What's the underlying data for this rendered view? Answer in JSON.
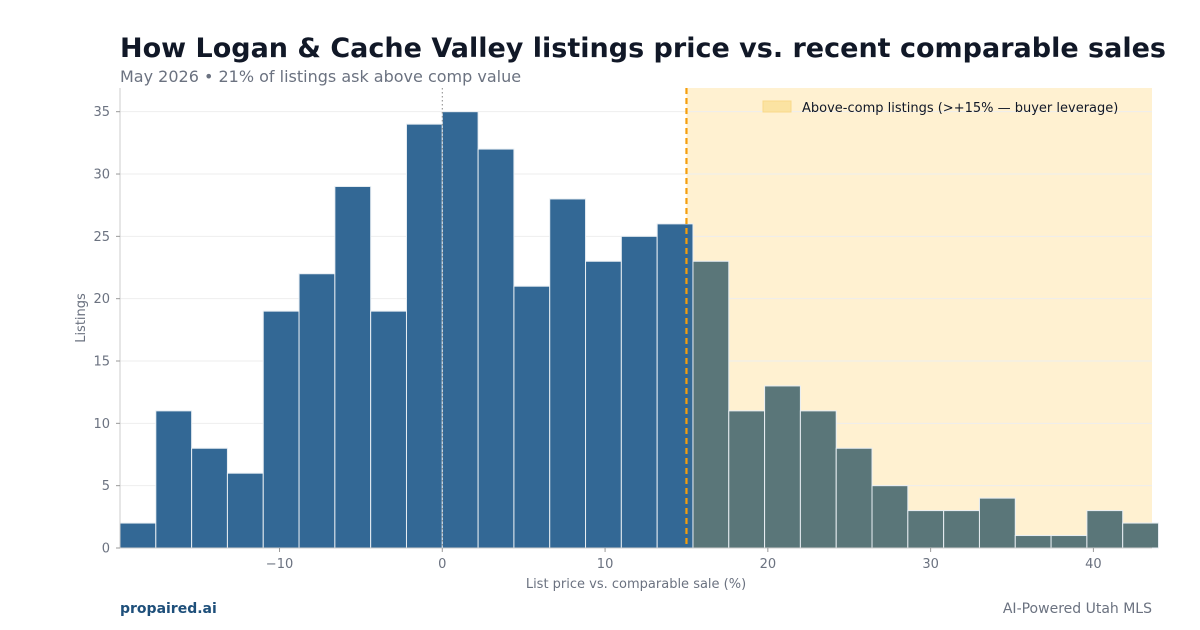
{
  "footer": {
    "brand": "propaired.ai",
    "tagline": "AI-Powered Utah MLS"
  },
  "colors": {
    "bar_below": "#336895",
    "bar_above": "#5a7679",
    "bar_edge": "#e8eef3",
    "highlight_region": "#fff1d1",
    "threshold_line": "#f59e0b",
    "zero_line": "#888888",
    "gridline": "#eeeeee",
    "axis": "#cccccc"
  },
  "chart_data": {
    "type": "bar",
    "subtype": "histogram",
    "title": "How Logan & Cache Valley listings price vs. recent comparable sales",
    "subtitle": "May 2026 • 21% of listings ask above comp value",
    "xlabel": "List price vs. comparable sale (%)",
    "ylabel": "Listings",
    "xlim": [
      -19.8,
      43.6
    ],
    "ylim": [
      0,
      36.9
    ],
    "xticks": [
      -10,
      0,
      10,
      20,
      30,
      40
    ],
    "xtick_labels": [
      "−10",
      "0",
      "10",
      "20",
      "30",
      "40"
    ],
    "yticks": [
      0,
      5,
      10,
      15,
      20,
      25,
      30,
      35
    ],
    "grid": true,
    "legend_position": "top-right",
    "legend": [
      {
        "label": "Above-comp listings (>+15% — buyer leverage)"
      }
    ],
    "threshold": 15,
    "zero_reference": 0,
    "highlight_region": [
      15,
      43.6
    ],
    "bin_width": 2.2,
    "bin_starts": [
      -19.8,
      -17.6,
      -15.4,
      -13.2,
      -11.0,
      -8.8,
      -6.6,
      -4.4,
      -2.2,
      0.0,
      2.2,
      4.4,
      6.6,
      8.8,
      11.0,
      13.2,
      15.4,
      17.6,
      19.8,
      22.0,
      24.2,
      26.4,
      28.6,
      30.8,
      33.0,
      35.2,
      37.4,
      39.6,
      41.8
    ],
    "values": [
      2,
      11,
      8,
      6,
      19,
      22,
      29,
      19,
      34,
      35,
      32,
      21,
      28,
      23,
      25,
      26,
      23,
      11,
      13,
      11,
      8,
      5,
      3,
      3,
      4,
      1,
      1,
      3,
      2
    ]
  }
}
